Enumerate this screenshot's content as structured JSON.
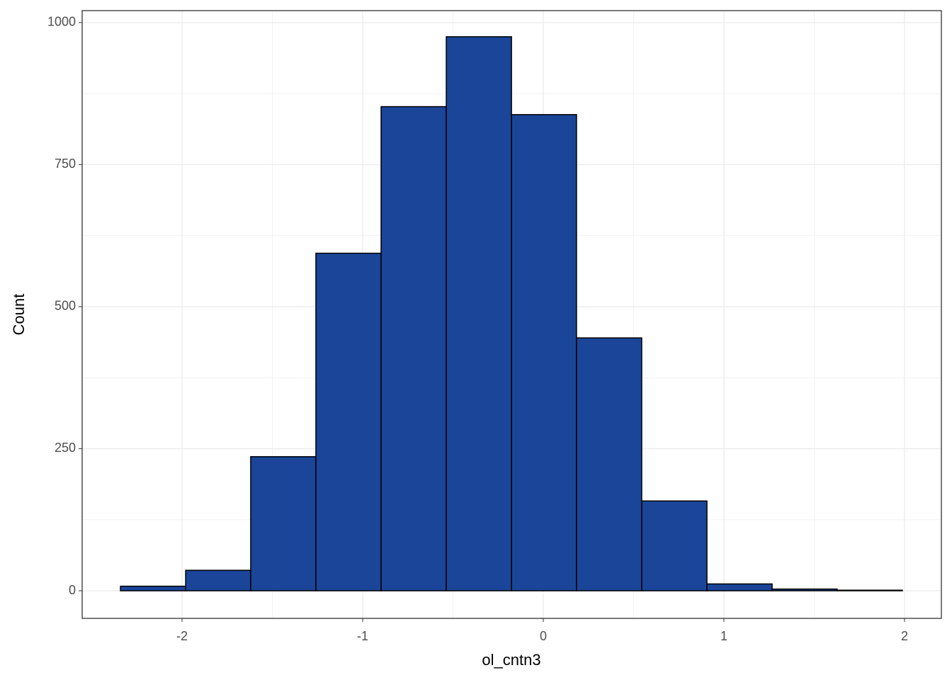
{
  "chart_data": {
    "type": "histogram",
    "x_label": "ol_cntn3",
    "y_label": "Count",
    "bins": [
      -2.341,
      -1.98,
      -1.62,
      -1.259,
      -0.898,
      -0.537,
      -0.176,
      0.184,
      0.545,
      0.906,
      1.267,
      1.627,
      1.988
    ],
    "counts": [
      8,
      36,
      236,
      594,
      852,
      975,
      838,
      445,
      158,
      12,
      3,
      1
    ],
    "color": "#1a4599",
    "xlim": [
      -2.553,
      2.204
    ],
    "xticks": [
      -2,
      -1,
      0,
      1,
      2
    ],
    "ylim": [
      -48.6,
      1021
    ],
    "yticks": [
      0,
      250,
      500,
      750,
      1000
    ],
    "grid": true
  }
}
